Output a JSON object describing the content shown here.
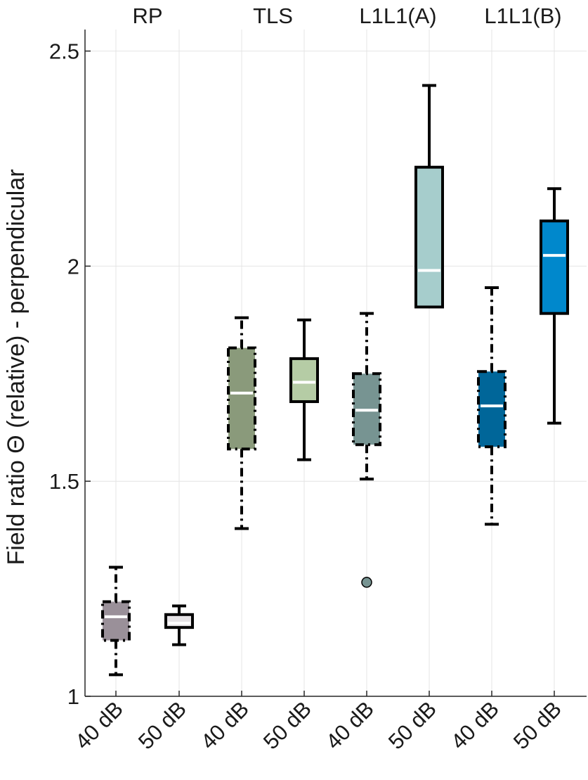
{
  "chart_data": {
    "type": "box",
    "ylabel": "Field ratio Θ (relative) - perpendicular",
    "ylim": [
      1.0,
      2.55
    ],
    "yticks": [
      {
        "value": 1.0,
        "label": "1"
      },
      {
        "value": 1.5,
        "label": "1.5"
      },
      {
        "value": 2.0,
        "label": "2"
      },
      {
        "value": 2.5,
        "label": "2.5"
      }
    ],
    "grid": true,
    "groups": [
      {
        "label": "RP"
      },
      {
        "label": "TLS"
      },
      {
        "label": "L1L1(A)"
      },
      {
        "label": "L1L1(B)"
      }
    ],
    "boxes": [
      {
        "group": 0,
        "category": "40 dB",
        "whisker_low": 1.05,
        "q1": 1.13,
        "median": 1.185,
        "q3": 1.22,
        "whisker_high": 1.3,
        "fill": "#9a9099",
        "line_style": "dashdot",
        "outliers": []
      },
      {
        "group": 0,
        "category": "50 dB",
        "whisker_low": 1.12,
        "q1": 1.16,
        "median": 1.17,
        "q3": 1.19,
        "whisker_high": 1.21,
        "fill": "#e6e3e6",
        "line_style": "solid",
        "outliers": []
      },
      {
        "group": 1,
        "category": "40 dB",
        "whisker_low": 1.39,
        "q1": 1.575,
        "median": 1.705,
        "q3": 1.81,
        "whisker_high": 1.88,
        "fill": "#8a9a7b",
        "line_style": "dashdot",
        "outliers": []
      },
      {
        "group": 1,
        "category": "50 dB",
        "whisker_low": 1.55,
        "q1": 1.685,
        "median": 1.73,
        "q3": 1.785,
        "whisker_high": 1.875,
        "fill": "#b5cca5",
        "line_style": "solid",
        "outliers": []
      },
      {
        "group": 2,
        "category": "40 dB",
        "whisker_low": 1.505,
        "q1": 1.585,
        "median": 1.665,
        "q3": 1.75,
        "whisker_high": 1.89,
        "fill": "#779492",
        "line_style": "dashdot",
        "outliers": [
          1.265
        ]
      },
      {
        "group": 2,
        "category": "50 dB",
        "whisker_low": 1.905,
        "q1": 1.905,
        "median": 1.99,
        "q3": 2.23,
        "whisker_high": 2.42,
        "fill": "#a6cdcc",
        "line_style": "solid",
        "outliers": []
      },
      {
        "group": 3,
        "category": "40 dB",
        "whisker_low": 1.4,
        "q1": 1.58,
        "median": 1.675,
        "q3": 1.755,
        "whisker_high": 1.95,
        "fill": "#006699",
        "line_style": "dashdot",
        "outliers": []
      },
      {
        "group": 3,
        "category": "50 dB",
        "whisker_low": 1.635,
        "q1": 1.89,
        "median": 2.025,
        "q3": 2.105,
        "whisker_high": 2.18,
        "fill": "#0088cc",
        "line_style": "solid",
        "outliers": []
      }
    ]
  }
}
